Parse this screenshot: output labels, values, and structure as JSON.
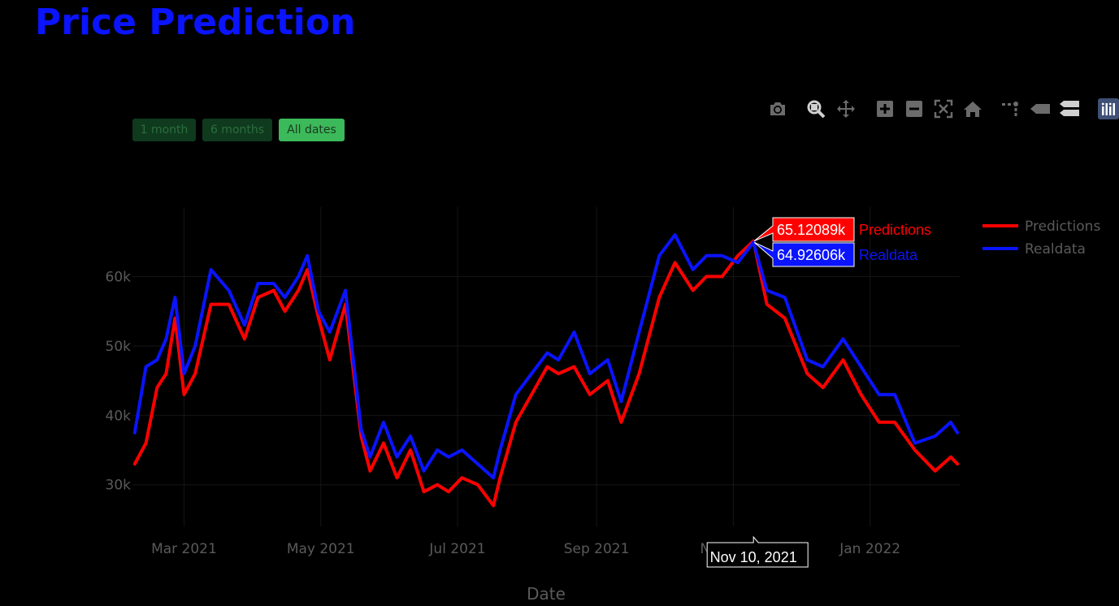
{
  "title": "Price Prediction",
  "range_buttons": [
    {
      "label": "1 month",
      "active": false
    },
    {
      "label": "6 months",
      "active": false
    },
    {
      "label": "All dates",
      "active": true
    }
  ],
  "toolbar": {
    "icons": [
      "camera-icon",
      "zoom-icon",
      "pan-icon",
      "zoom-in-icon",
      "zoom-out-icon",
      "autoscale-icon",
      "reset-axes-icon",
      "spike-lines-icon",
      "hover-closest-icon",
      "hover-compare-icon",
      "plotly-logo-icon"
    ]
  },
  "colors": {
    "predictions": "#ff0000",
    "realdata": "#0a14ff",
    "title": "#0a14ff",
    "axis_text": "#5a5a5a"
  },
  "chart_data": {
    "type": "line",
    "xlabel": "Date",
    "ylabel": "",
    "x_ticks": [
      "Mar 2021",
      "May 2021",
      "Jul 2021",
      "Sep 2021",
      "Nov 2021",
      "Jan 2022"
    ],
    "y_ticks": [
      "30k",
      "40k",
      "50k",
      "60k"
    ],
    "xlim": [
      "2021-02-06",
      "2022-02-10"
    ],
    "ylim": [
      24000,
      70000
    ],
    "legend_position": "top-right",
    "x": [
      "2021-02-07",
      "2021-02-12",
      "2021-02-17",
      "2021-02-21",
      "2021-02-25",
      "2021-03-01",
      "2021-03-06",
      "2021-03-13",
      "2021-03-21",
      "2021-03-28",
      "2021-04-03",
      "2021-04-10",
      "2021-04-15",
      "2021-04-21",
      "2021-04-25",
      "2021-04-30",
      "2021-05-05",
      "2021-05-12",
      "2021-05-19",
      "2021-05-23",
      "2021-05-29",
      "2021-06-04",
      "2021-06-10",
      "2021-06-16",
      "2021-06-22",
      "2021-06-27",
      "2021-07-03",
      "2021-07-10",
      "2021-07-17",
      "2021-07-20",
      "2021-07-27",
      "2021-08-03",
      "2021-08-10",
      "2021-08-15",
      "2021-08-22",
      "2021-08-29",
      "2021-09-06",
      "2021-09-12",
      "2021-09-20",
      "2021-09-29",
      "2021-10-06",
      "2021-10-14",
      "2021-10-20",
      "2021-10-27",
      "2021-11-03",
      "2021-11-10",
      "2021-11-16",
      "2021-11-24",
      "2021-12-04",
      "2021-12-11",
      "2021-12-20",
      "2021-12-28",
      "2022-01-05",
      "2022-01-12",
      "2022-01-21",
      "2022-01-30",
      "2022-02-06",
      "2022-02-09"
    ],
    "series": [
      {
        "name": "Predictions",
        "values": [
          33000,
          36000,
          44000,
          46000,
          54000,
          43000,
          46000,
          56000,
          56000,
          51000,
          57000,
          58000,
          55000,
          58000,
          61000,
          54000,
          48000,
          56000,
          37000,
          32000,
          36000,
          31000,
          35000,
          29000,
          30000,
          29000,
          31000,
          30000,
          27000,
          31000,
          39000,
          43000,
          47000,
          46000,
          47000,
          43000,
          45000,
          39000,
          46000,
          57000,
          62000,
          58000,
          60000,
          60000,
          63000,
          65121,
          56000,
          54000,
          46000,
          44000,
          48000,
          43000,
          39000,
          39000,
          35000,
          32000,
          34000,
          33000
        ]
      },
      {
        "name": "Realdata",
        "values": [
          37500,
          47000,
          48000,
          51000,
          57000,
          46000,
          50000,
          61000,
          58000,
          53000,
          59000,
          59000,
          57000,
          60000,
          63000,
          55000,
          52000,
          58000,
          38000,
          34000,
          39000,
          34000,
          37000,
          32000,
          35000,
          34000,
          35000,
          33000,
          31000,
          35000,
          43000,
          46000,
          49000,
          48000,
          52000,
          46000,
          48000,
          42000,
          52000,
          63000,
          66000,
          61000,
          63000,
          63000,
          62000,
          64926,
          58000,
          57000,
          48000,
          47000,
          51000,
          47000,
          43000,
          43000,
          36000,
          37000,
          39000,
          37500
        ]
      }
    ],
    "hover": {
      "date_label": "Nov 10, 2021",
      "predictions_value": "65.12089k",
      "realdata_value": "64.92606k"
    }
  }
}
